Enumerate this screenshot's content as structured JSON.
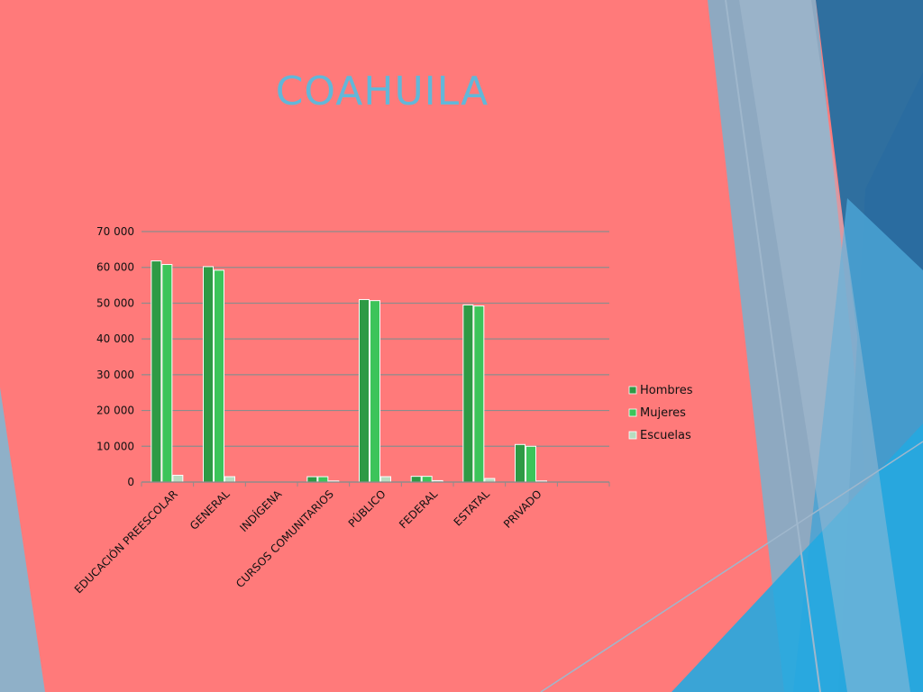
{
  "slide": {
    "title": "COAHUILA"
  },
  "colors": {
    "background": "#ff7a7a",
    "title": "#62b7d8",
    "hombres": "#2e9a45",
    "mujeres": "#3cc45a",
    "escuelas": "#b8dcc0"
  },
  "chart_data": {
    "type": "bar",
    "categories": [
      "EDUCACIÓN PREESCOLAR",
      "GENERAL",
      "INDÍGENA",
      "CURSOS COMUNITARIOS",
      "PÚBLICO",
      "FEDERAL",
      "ESTATAL",
      "PRIVADO"
    ],
    "series": [
      {
        "name": "Hombres",
        "values": [
          61800,
          60200,
          0,
          1500,
          51000,
          1600,
          49500,
          10500
        ]
      },
      {
        "name": "Mujeres",
        "values": [
          60800,
          59200,
          0,
          1500,
          50700,
          1600,
          49200,
          10000
        ]
      },
      {
        "name": "Escuelas",
        "values": [
          1900,
          1500,
          0,
          300,
          1500,
          400,
          1000,
          300
        ]
      }
    ],
    "yticks": [
      "0",
      "10 000",
      "20 000",
      "30 000",
      "40 000",
      "50 000",
      "60 000",
      "70 000"
    ],
    "ylim": [
      0,
      70000
    ],
    "grid": true,
    "legend_position": "right"
  }
}
